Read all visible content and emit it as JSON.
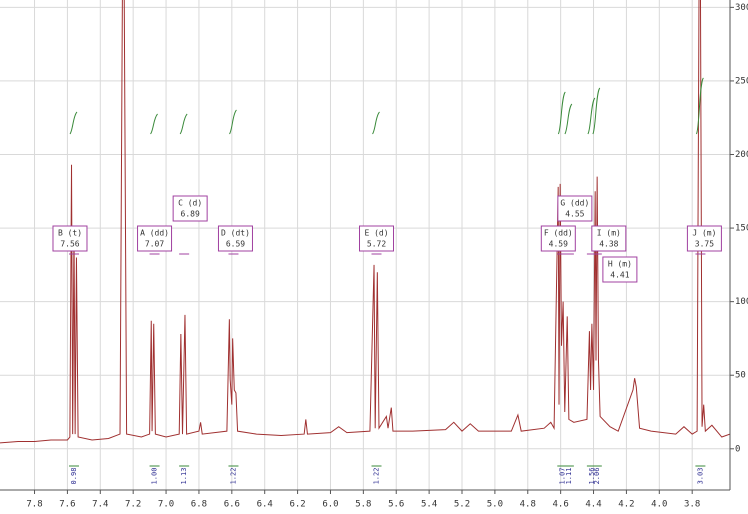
{
  "chart_data": {
    "type": "line",
    "x": [
      8.01,
      7.9,
      7.8,
      7.7,
      7.6,
      7.585,
      7.575,
      7.568,
      7.56,
      7.553,
      7.545,
      7.535,
      7.45,
      7.35,
      7.28,
      7.265,
      7.255,
      7.24,
      7.15,
      7.1,
      7.09,
      7.085,
      7.075,
      7.065,
      7.0,
      6.92,
      6.91,
      6.9,
      6.885,
      6.875,
      6.8,
      6.79,
      6.78,
      6.63,
      6.615,
      6.61,
      6.6,
      6.595,
      6.585,
      6.575,
      6.565,
      6.45,
      6.3,
      6.16,
      6.15,
      6.14,
      6.0,
      5.95,
      5.9,
      5.76,
      5.735,
      5.728,
      5.715,
      5.705,
      5.66,
      5.65,
      5.63,
      5.62,
      5.5,
      5.3,
      5.25,
      5.2,
      5.15,
      5.1,
      4.9,
      4.86,
      4.84,
      4.7,
      4.66,
      4.64,
      4.615,
      4.61,
      4.603,
      4.595,
      4.585,
      4.575,
      4.56,
      4.55,
      4.52,
      4.44,
      4.425,
      4.418,
      4.41,
      4.4,
      4.39,
      4.385,
      4.378,
      4.37,
      4.36,
      4.3,
      4.25,
      4.16,
      4.15,
      4.14,
      4.12,
      4.05,
      3.9,
      3.85,
      3.8,
      3.77,
      3.758,
      3.75,
      3.74,
      3.73,
      3.72,
      3.68,
      3.62,
      3.57
    ],
    "series": [
      {
        "color": "#a03030",
        "values": [
          4,
          5,
          5,
          6,
          6,
          8,
          193,
          10,
          150,
          10,
          130,
          8,
          6,
          7,
          10,
          320,
          320,
          10,
          8,
          10,
          87,
          12,
          85,
          10,
          8,
          10,
          78,
          10,
          91,
          10,
          12,
          18,
          10,
          12,
          88,
          47,
          30,
          75,
          40,
          38,
          12,
          10,
          9,
          10,
          20,
          10,
          11,
          15,
          11,
          12,
          125,
          14,
          120,
          14,
          22,
          14,
          28,
          12,
          12,
          13,
          18,
          12,
          17,
          12,
          12,
          23,
          12,
          14,
          18,
          14,
          178,
          30,
          180,
          70,
          100,
          25,
          90,
          20,
          18,
          20,
          80,
          40,
          85,
          40,
          175,
          60,
          185,
          60,
          22,
          15,
          12,
          40,
          48,
          42,
          14,
          12,
          10,
          15,
          10,
          12,
          320,
          320,
          15,
          30,
          12,
          16,
          8,
          10
        ]
      }
    ],
    "xlim": [
      8.01,
      3.57
    ],
    "xticks": [
      7.8,
      7.6,
      7.4,
      7.2,
      {
        "value": 7,
        "label": "7.0"
      },
      6.8,
      6.6,
      6.4,
      6.2,
      {
        "value": 6,
        "label": "6.0"
      },
      5.8,
      5.6,
      5.4,
      5.2,
      {
        "value": 5,
        "label": "5.0"
      },
      4.8,
      4.6,
      4.4,
      4.2,
      {
        "value": 4,
        "label": "4.0"
      },
      3.8
    ],
    "ylim": [
      -28,
      305
    ],
    "yticks": [
      0,
      50,
      100,
      150,
      200,
      250,
      300
    ],
    "grid": true,
    "multiplets": [
      {
        "name": "B (t)",
        "shift": 7.56,
        "integral": 0.98
      },
      {
        "name": "A (dd)",
        "shift": 7.07,
        "integral": {
          "value": 1,
          "label": "1.00"
        }
      },
      {
        "name": "C (d)",
        "shift": 6.89,
        "integral": 1.13
      },
      {
        "name": "D (dt)",
        "shift": 6.59,
        "integral": 1.22
      },
      {
        "name": "E (d)",
        "shift": 5.72,
        "integral": 1.22
      },
      {
        "name": "F (dd)",
        "shift": 4.59,
        "integral": 1.07
      },
      {
        "name": "G (dd)",
        "shift": 4.55,
        "integral": 1.11
      },
      {
        "name": "H (m)",
        "shift": 4.41,
        "integral": 1.56
      },
      {
        "name": "I (m)",
        "shift": 4.38,
        "integral": 2.06
      },
      {
        "name": "J (m)",
        "shift": 3.75,
        "integral": 3.03
      }
    ]
  }
}
